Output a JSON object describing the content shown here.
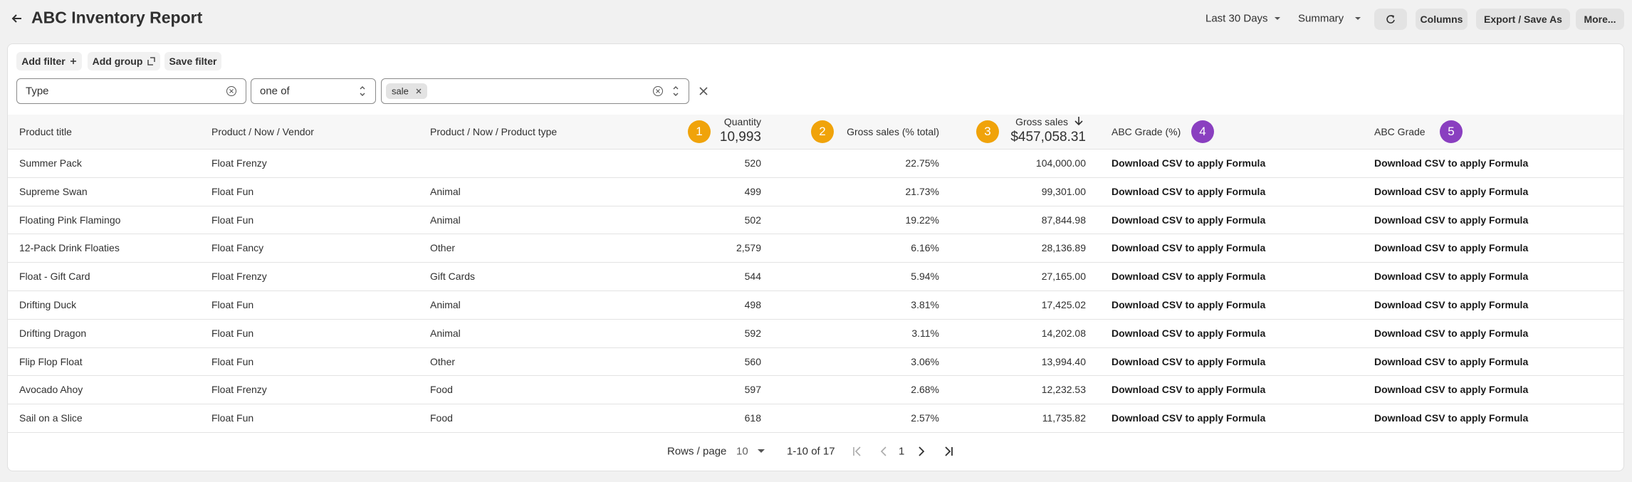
{
  "header": {
    "title": "ABC Inventory Report",
    "date_range": "Last 30 Days",
    "view": "Summary",
    "buttons": [
      "Columns",
      "Export / Save As",
      "More..."
    ]
  },
  "filter_bar": {
    "actions": [
      "Add filter",
      "Add group",
      "Save filter"
    ],
    "field": "Type",
    "operator": "one of",
    "chips": [
      "sale"
    ]
  },
  "table": {
    "columns": [
      {
        "label": "Product title"
      },
      {
        "label": "Product / Now / Vendor"
      },
      {
        "label": "Product / Now / Product type"
      },
      {
        "label": "Quantity",
        "total": "10,993",
        "badge": "1"
      },
      {
        "label": "Gross sales (% total)",
        "badge": "2"
      },
      {
        "label": "Gross sales",
        "total": "$457,058.31",
        "badge": "3"
      },
      {
        "label": "ABC Grade (%)",
        "badge": "4"
      },
      {
        "label": "ABC Grade",
        "badge": "5"
      }
    ],
    "rows": [
      [
        "Summer Pack",
        "Float Frenzy",
        null,
        "520",
        "22.75%",
        "104,000.00",
        "Download CSV to apply Formula",
        "Download CSV to apply Formula"
      ],
      [
        "Supreme Swan",
        "Float Fun",
        "Animal",
        "499",
        "21.73%",
        "99,301.00",
        "Download CSV to apply Formula",
        "Download CSV to apply Formula"
      ],
      [
        "Floating Pink Flamingo",
        "Float Fun",
        "Animal",
        "502",
        "19.22%",
        "87,844.98",
        "Download CSV to apply Formula",
        "Download CSV to apply Formula"
      ],
      [
        "12-Pack Drink Floaties",
        "Float Fancy",
        "Other",
        "2,579",
        "6.16%",
        "28,136.89",
        "Download CSV to apply Formula",
        "Download CSV to apply Formula"
      ],
      [
        "Float - Gift Card",
        "Float Frenzy",
        "Gift Cards",
        "544",
        "5.94%",
        "27,165.00",
        "Download CSV to apply Formula",
        "Download CSV to apply Formula"
      ],
      [
        "Drifting Duck",
        "Float Fun",
        "Animal",
        "498",
        "3.81%",
        "17,425.02",
        "Download CSV to apply Formula",
        "Download CSV to apply Formula"
      ],
      [
        "Drifting Dragon",
        "Float Fun",
        "Animal",
        "592",
        "3.11%",
        "14,202.08",
        "Download CSV to apply Formula",
        "Download CSV to apply Formula"
      ],
      [
        "Flip Flop Float",
        "Float Fun",
        "Other",
        "560",
        "3.06%",
        "13,994.40",
        "Download CSV to apply Formula",
        "Download CSV to apply Formula"
      ],
      [
        "Avocado Ahoy",
        "Float Frenzy",
        "Food",
        "597",
        "2.68%",
        "12,232.53",
        "Download CSV to apply Formula",
        "Download CSV to apply Formula"
      ],
      [
        "Sail on a Slice",
        "Float Fun",
        "Food",
        "618",
        "2.57%",
        "11,735.82",
        "Download CSV to apply Formula",
        "Download CSV to apply Formula"
      ]
    ]
  },
  "pagination": {
    "rows_per_page_label": "Rows / page",
    "rows_per_page": "10",
    "range": "1-10 of 17",
    "page": "1"
  }
}
